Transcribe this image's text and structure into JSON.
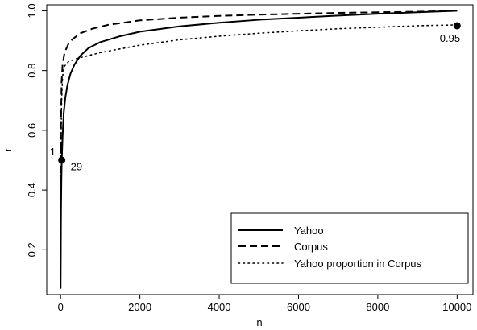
{
  "chart_data": {
    "type": "line",
    "xlabel": "n",
    "ylabel": "r",
    "xlim": [
      -350,
      10400
    ],
    "ylim": [
      0.05,
      1.02
    ],
    "x_ticks": [
      0,
      2000,
      4000,
      6000,
      8000,
      10000
    ],
    "x_tick_labels": [
      "0",
      "2000",
      "4000",
      "6000",
      "8000",
      "10000"
    ],
    "y_ticks": [
      0.2,
      0.4,
      0.6,
      0.8,
      1.0
    ],
    "y_tick_labels": [
      "0.2",
      "0.4",
      "0.6",
      "0.8",
      "1.0"
    ],
    "grid": false,
    "legend_position": "bottom-right",
    "series": [
      {
        "name": "Yahoo",
        "style": "solid",
        "x": [
          0,
          10,
          20,
          29,
          50,
          80,
          120,
          170,
          250,
          350,
          500,
          700,
          1000,
          1500,
          2000,
          3000,
          4000,
          5000,
          6000,
          7000,
          8000,
          9000,
          10000
        ],
        "y": [
          0.07,
          0.33,
          0.44,
          0.5,
          0.58,
          0.66,
          0.71,
          0.75,
          0.79,
          0.82,
          0.85,
          0.875,
          0.895,
          0.915,
          0.93,
          0.948,
          0.96,
          0.97,
          0.977,
          0.984,
          0.99,
          0.995,
          1.0
        ]
      },
      {
        "name": "Corpus",
        "style": "dashed",
        "x": [
          0,
          10,
          25,
          50,
          100,
          200,
          300,
          500,
          800,
          1200,
          2000,
          3000,
          4000,
          5000,
          6000,
          7000,
          8000,
          9000,
          10000
        ],
        "y": [
          0.38,
          0.62,
          0.76,
          0.82,
          0.86,
          0.89,
          0.905,
          0.925,
          0.94,
          0.953,
          0.968,
          0.977,
          0.983,
          0.987,
          0.99,
          0.993,
          0.995,
          0.997,
          1.0
        ],
        "style_hint": "dashed"
      },
      {
        "name": "Yahoo proportion in Corpus",
        "style": "dotted",
        "x": [
          0,
          10,
          25,
          50,
          100,
          200,
          400,
          700,
          1000,
          2000,
          3000,
          4000,
          5000,
          6000,
          7000,
          8000,
          9000,
          10000
        ],
        "y": [
          0.12,
          0.55,
          0.7,
          0.78,
          0.815,
          0.83,
          0.84,
          0.85,
          0.86,
          0.885,
          0.903,
          0.915,
          0.925,
          0.933,
          0.94,
          0.945,
          0.95,
          0.953
        ]
      }
    ],
    "points": [
      {
        "x": 29,
        "y": 0.5
      },
      {
        "x": 10000,
        "y": 0.95
      }
    ],
    "annotations": [
      {
        "text": "1",
        "x": -200,
        "y": 0.525
      },
      {
        "text": "29",
        "x": 400,
        "y": 0.475
      },
      {
        "text": "0.95",
        "x": 9820,
        "y": 0.905
      }
    ]
  }
}
